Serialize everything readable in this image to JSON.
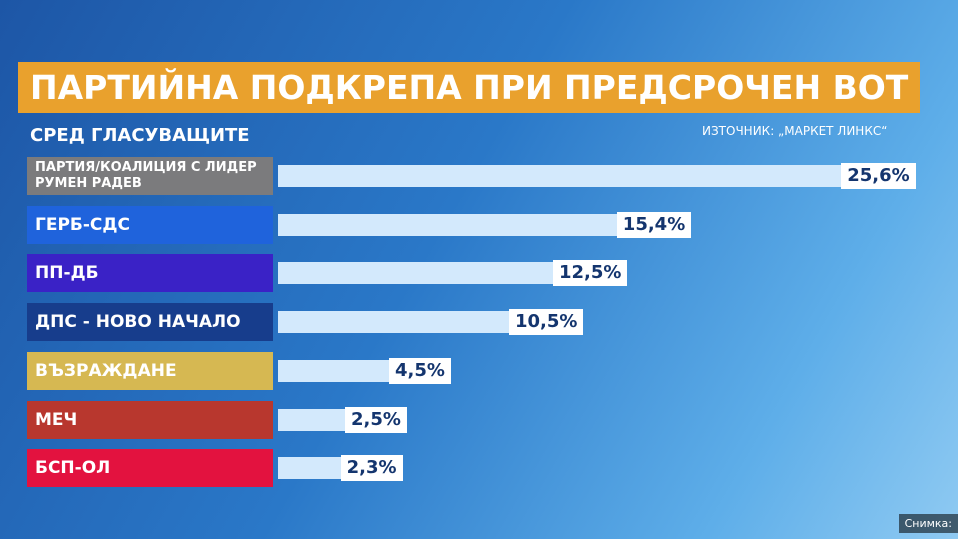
{
  "chart_data": {
    "type": "bar",
    "orientation": "horizontal",
    "title": "ПАРТИЙНА ПОДКРЕПА ПРИ ПРЕДСРОЧЕН ВОТ",
    "subtitle": "СРЕД ГЛАСУВАЩИТЕ",
    "source": "ИЗТОЧНИК: „МАРКЕТ ЛИНКС“",
    "photo_credit": "Снимка:",
    "categories": [
      "ПАРТИЯ/КОАЛИЦИЯ С ЛИДЕР РУМЕН РАДЕВ",
      "ГЕРБ-СДС",
      "ПП-ДБ",
      "ДПС - НОВО НАЧАЛО",
      "ВЪЗРАЖДАНЕ",
      "МЕЧ",
      "БСП-ОЛ"
    ],
    "values": [
      25.6,
      15.4,
      12.5,
      10.5,
      4.5,
      2.5,
      2.3
    ],
    "value_labels": [
      "25,6%",
      "15,4%",
      "12,5%",
      "10,5%",
      "4,5%",
      "2,5%",
      "2,3%"
    ],
    "category_colors": [
      "#7b7b7d",
      "#1f63dc",
      "#3a22c6",
      "#173d8c",
      "#d6b852",
      "#b8372e",
      "#e3123f"
    ],
    "color": "#d3e9fc"
  }
}
